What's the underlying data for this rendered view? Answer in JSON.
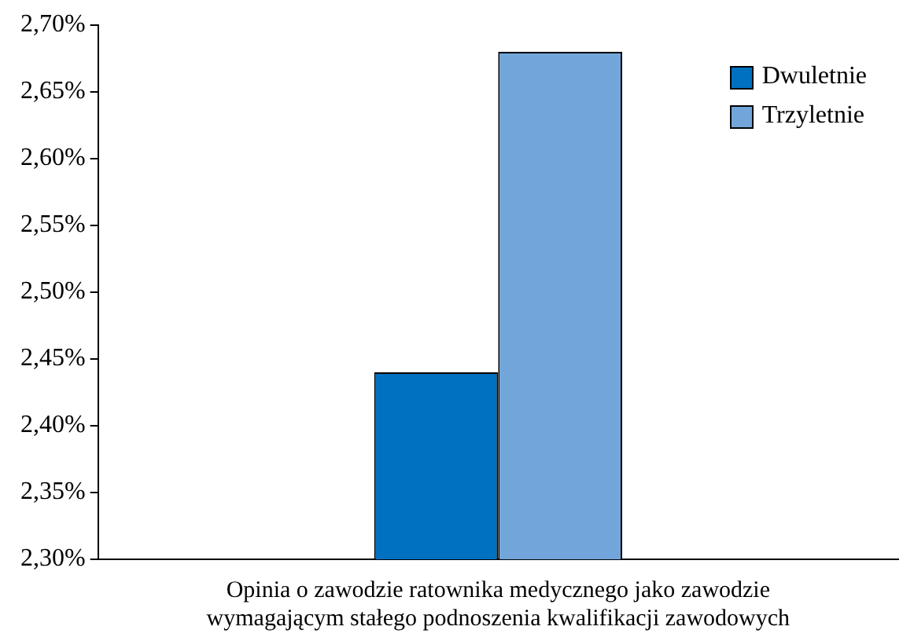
{
  "chart_data": {
    "type": "bar",
    "categories": [
      "Opinia o zawodzie ratownika medycznego jako zawodzie wymagającym stałego podnoszenia kwalifikacji zawodowych"
    ],
    "series": [
      {
        "name": "Dwuletnie",
        "color": "#0070c0",
        "values": [
          2.44
        ]
      },
      {
        "name": "Trzyletnie",
        "color": "#72a6da",
        "values": [
          2.68
        ]
      }
    ],
    "ylim": [
      2.3,
      2.7
    ],
    "yticks": [
      {
        "value": 2.3,
        "label": "2,30%"
      },
      {
        "value": 2.35,
        "label": "2,35%"
      },
      {
        "value": 2.4,
        "label": "2,40%"
      },
      {
        "value": 2.45,
        "label": "2,45%"
      },
      {
        "value": 2.5,
        "label": "2,50%"
      },
      {
        "value": 2.55,
        "label": "2,55%"
      },
      {
        "value": 2.6,
        "label": "2,60%"
      },
      {
        "value": 2.65,
        "label": "2,65%"
      },
      {
        "value": 2.7,
        "label": "2,70%"
      }
    ],
    "grid": false,
    "legend": "top right"
  }
}
